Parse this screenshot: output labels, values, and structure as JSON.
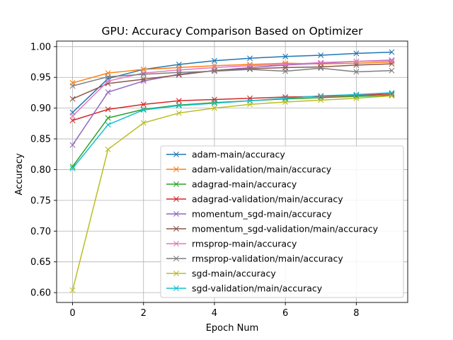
{
  "chart_data": {
    "type": "line",
    "title": "GPU: Accuracy Comparison Based on Optimizer",
    "xlabel": "Epoch Num",
    "ylabel": "Accuracy",
    "xlim": [
      -0.45,
      9.45
    ],
    "ylim": [
      0.584,
      1.009
    ],
    "xticks": [
      0,
      2,
      4,
      6,
      8
    ],
    "yticks": [
      0.6,
      0.65,
      0.7,
      0.75,
      0.8,
      0.85,
      0.9,
      0.95,
      1.0
    ],
    "ytick_labels": [
      "0.60",
      "0.65",
      "0.70",
      "0.75",
      "0.80",
      "0.85",
      "0.90",
      "0.95",
      "1.00"
    ],
    "grid": true,
    "legend_position": "lower-right",
    "marker": "x",
    "x": [
      0,
      1,
      2,
      3,
      4,
      5,
      6,
      7,
      8,
      9
    ],
    "series": [
      {
        "name": "adam-main/accuracy",
        "color": "#1f77b4",
        "values": [
          0.893,
          0.948,
          0.963,
          0.971,
          0.977,
          0.981,
          0.984,
          0.986,
          0.989,
          0.991
        ]
      },
      {
        "name": "adam-validation/main/accuracy",
        "color": "#ff7f0e",
        "values": [
          0.941,
          0.957,
          0.963,
          0.966,
          0.969,
          0.971,
          0.973,
          0.972,
          0.973,
          0.975
        ]
      },
      {
        "name": "adagrad-main/accuracy",
        "color": "#2ca02c",
        "values": [
          0.805,
          0.884,
          0.898,
          0.905,
          0.909,
          0.912,
          0.915,
          0.917,
          0.919,
          0.921
        ]
      },
      {
        "name": "adagrad-validation/main/accuracy",
        "color": "#d62728",
        "values": [
          0.88,
          0.898,
          0.906,
          0.912,
          0.914,
          0.916,
          0.918,
          0.919,
          0.921,
          0.923
        ]
      },
      {
        "name": "momentum_sgd-main/accuracy",
        "color": "#9467bd",
        "values": [
          0.84,
          0.926,
          0.944,
          0.955,
          0.961,
          0.966,
          0.97,
          0.973,
          0.976,
          0.978
        ]
      },
      {
        "name": "momentum_sgd-validation/main/accuracy",
        "color": "#8c564b",
        "values": [
          0.915,
          0.94,
          0.947,
          0.954,
          0.961,
          0.964,
          0.966,
          0.967,
          0.97,
          0.972
        ]
      },
      {
        "name": "rmsprop-main/accuracy",
        "color": "#e377c2",
        "values": [
          0.887,
          0.944,
          0.957,
          0.962,
          0.966,
          0.969,
          0.971,
          0.974,
          0.976,
          0.977
        ]
      },
      {
        "name": "rmsprop-validation/main/accuracy",
        "color": "#7f7f7f",
        "values": [
          0.936,
          0.951,
          0.955,
          0.958,
          0.96,
          0.963,
          0.96,
          0.965,
          0.959,
          0.961
        ]
      },
      {
        "name": "sgd-main/accuracy",
        "color": "#bcbd22",
        "values": [
          0.604,
          0.833,
          0.876,
          0.892,
          0.9,
          0.906,
          0.91,
          0.913,
          0.916,
          0.92
        ]
      },
      {
        "name": "sgd-validation/main/accuracy",
        "color": "#17becf",
        "values": [
          0.802,
          0.873,
          0.897,
          0.904,
          0.908,
          0.912,
          0.916,
          0.92,
          0.922,
          0.925
        ]
      }
    ]
  }
}
